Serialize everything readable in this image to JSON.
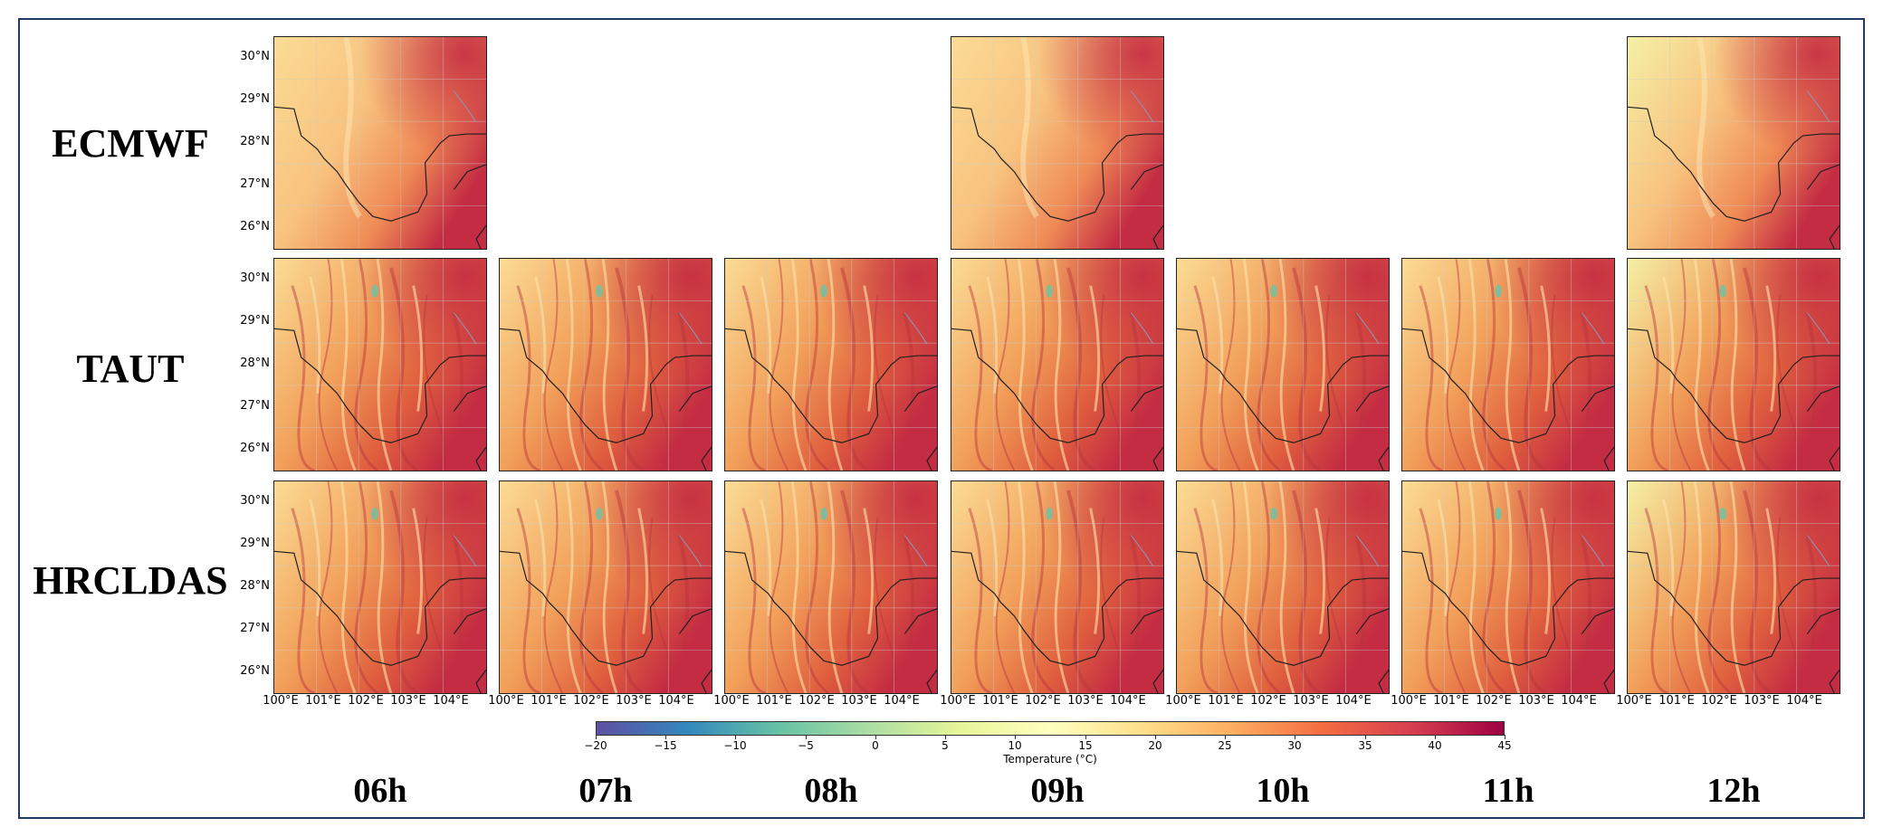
{
  "rows": [
    {
      "label": "ECMWF",
      "panels": [
        true,
        false,
        false,
        true,
        false,
        false,
        true
      ]
    },
    {
      "label": "TAUT",
      "panels": [
        true,
        true,
        true,
        true,
        true,
        true,
        true
      ]
    },
    {
      "label": "HRCLDAS",
      "panels": [
        true,
        true,
        true,
        true,
        true,
        true,
        true
      ]
    }
  ],
  "times": [
    "06h",
    "07h",
    "08h",
    "09h",
    "10h",
    "11h",
    "12h"
  ],
  "lat_ticks": [
    "30°N",
    "29°N",
    "28°N",
    "27°N",
    "26°N"
  ],
  "lon_ticks": [
    "100°E",
    "101°E",
    "102°E",
    "103°E",
    "104°E"
  ],
  "colorbar": {
    "title": "Temperature (°C)",
    "ticks": [
      "−20",
      "−15",
      "−10",
      "−5",
      "0",
      "5",
      "10",
      "15",
      "20",
      "25",
      "30",
      "35",
      "40",
      "45"
    ],
    "min": -20,
    "max": 45,
    "colormap": "Spectral_r",
    "colors": [
      "#5e4fa2",
      "#3288bd",
      "#66c2a5",
      "#abdda4",
      "#e6f598",
      "#ffffbf",
      "#fee08b",
      "#fdae61",
      "#f46d43",
      "#d53e4f",
      "#9e0142"
    ]
  }
}
